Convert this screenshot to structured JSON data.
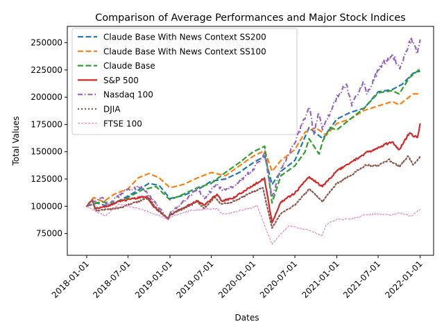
{
  "chart_data": {
    "type": "line",
    "title": "Comparison of Average Performances and Major Stock Indices",
    "xlabel": "Dates",
    "ylabel": "Total Values",
    "xlim": [
      "2017-10-08",
      "2022-03-01"
    ],
    "ylim": [
      55000,
      265000
    ],
    "x_ticks": [
      "2018-01-01",
      "2018-07-01",
      "2019-01-01",
      "2019-07-01",
      "2020-01-01",
      "2020-07-01",
      "2021-01-01",
      "2021-07-01",
      "2022-01-01"
    ],
    "y_ticks": [
      75000,
      100000,
      125000,
      150000,
      175000,
      200000,
      225000,
      250000
    ],
    "y_tick_labels": [
      "75000",
      "100000",
      "125000",
      "150000",
      "175000",
      "200000",
      "225000",
      "250000"
    ],
    "grid": false,
    "legend_position": "top-left",
    "series": [
      {
        "name": "Claude Base With News Context SS200",
        "color": "#1f77b4",
        "style": "dashed",
        "points": [
          [
            "2018-01-01",
            100000
          ],
          [
            "2018-02-15",
            103000
          ],
          [
            "2018-04-01",
            100000
          ],
          [
            "2018-06-01",
            106000
          ],
          [
            "2018-08-01",
            113000
          ],
          [
            "2018-10-01",
            121000
          ],
          [
            "2018-11-15",
            119000
          ],
          [
            "2019-01-01",
            107000
          ],
          [
            "2019-03-01",
            110000
          ],
          [
            "2019-05-01",
            115000
          ],
          [
            "2019-07-01",
            123000
          ],
          [
            "2019-09-01",
            125000
          ],
          [
            "2019-11-01",
            131000
          ],
          [
            "2020-01-01",
            140000
          ],
          [
            "2020-02-20",
            146000
          ],
          [
            "2020-03-23",
            120000
          ],
          [
            "2020-05-01",
            132000
          ],
          [
            "2020-07-01",
            142000
          ],
          [
            "2020-09-01",
            172000
          ],
          [
            "2020-11-01",
            162000
          ],
          [
            "2021-01-01",
            180000
          ],
          [
            "2021-03-01",
            186000
          ],
          [
            "2021-05-01",
            190000
          ],
          [
            "2021-07-01",
            205000
          ],
          [
            "2021-09-01",
            207000
          ],
          [
            "2021-10-15",
            212000
          ],
          [
            "2021-12-01",
            222000
          ],
          [
            "2022-01-01",
            224000
          ]
        ]
      },
      {
        "name": "Claude Base With News Context SS100",
        "color": "#ff7f0e",
        "style": "dashed",
        "points": [
          [
            "2018-01-01",
            100000
          ],
          [
            "2018-02-01",
            108000
          ],
          [
            "2018-03-15",
            104000
          ],
          [
            "2018-05-01",
            111000
          ],
          [
            "2018-07-01",
            116000
          ],
          [
            "2018-08-15",
            126000
          ],
          [
            "2018-10-01",
            130000
          ],
          [
            "2018-11-15",
            126000
          ],
          [
            "2019-01-01",
            117000
          ],
          [
            "2019-03-01",
            120000
          ],
          [
            "2019-05-01",
            126000
          ],
          [
            "2019-07-01",
            131000
          ],
          [
            "2019-09-01",
            128000
          ],
          [
            "2019-11-01",
            137000
          ],
          [
            "2020-01-01",
            146000
          ],
          [
            "2020-02-20",
            151000
          ],
          [
            "2020-03-23",
            132000
          ],
          [
            "2020-05-01",
            142000
          ],
          [
            "2020-07-01",
            152000
          ],
          [
            "2020-08-15",
            168000
          ],
          [
            "2020-10-01",
            172000
          ],
          [
            "2020-11-15",
            165000
          ],
          [
            "2021-01-01",
            176000
          ],
          [
            "2021-03-01",
            180000
          ],
          [
            "2021-05-01",
            188000
          ],
          [
            "2021-07-01",
            192000
          ],
          [
            "2021-09-01",
            196000
          ],
          [
            "2021-10-01",
            193000
          ],
          [
            "2021-12-01",
            203000
          ],
          [
            "2022-01-01",
            203000
          ]
        ]
      },
      {
        "name": "Claude Base",
        "color": "#2ca02c",
        "style": "dashed",
        "points": [
          [
            "2018-01-01",
            100000
          ],
          [
            "2018-03-01",
            104000
          ],
          [
            "2018-05-01",
            103000
          ],
          [
            "2018-07-01",
            108000
          ],
          [
            "2018-09-01",
            115000
          ],
          [
            "2018-11-01",
            118000
          ],
          [
            "2019-01-01",
            106000
          ],
          [
            "2019-03-01",
            111000
          ],
          [
            "2019-05-01",
            117000
          ],
          [
            "2019-07-01",
            121000
          ],
          [
            "2019-09-01",
            131000
          ],
          [
            "2019-11-01",
            140000
          ],
          [
            "2020-01-01",
            150000
          ],
          [
            "2020-02-20",
            155000
          ],
          [
            "2020-03-23",
            103000
          ],
          [
            "2020-05-01",
            128000
          ],
          [
            "2020-07-01",
            137000
          ],
          [
            "2020-08-15",
            150000
          ],
          [
            "2020-09-01",
            162000
          ],
          [
            "2020-10-15",
            148000
          ],
          [
            "2020-11-01",
            160000
          ],
          [
            "2020-12-01",
            172000
          ],
          [
            "2021-01-01",
            170000
          ],
          [
            "2021-03-01",
            180000
          ],
          [
            "2021-05-01",
            190000
          ],
          [
            "2021-07-01",
            204000
          ],
          [
            "2021-09-01",
            206000
          ],
          [
            "2021-10-01",
            203000
          ],
          [
            "2021-11-15",
            218000
          ],
          [
            "2022-01-01",
            226000
          ]
        ]
      },
      {
        "name": "S&P 500",
        "color": "#d62728",
        "style": "solid",
        "points": [
          [
            "2018-01-01",
            100000
          ],
          [
            "2018-01-26",
            106000
          ],
          [
            "2018-02-08",
            98000
          ],
          [
            "2018-04-01",
            100000
          ],
          [
            "2018-06-01",
            105000
          ],
          [
            "2018-09-20",
            109000
          ],
          [
            "2018-10-25",
            99000
          ],
          [
            "2018-12-24",
            88000
          ],
          [
            "2019-01-01",
            92000
          ],
          [
            "2019-04-30",
            105000
          ],
          [
            "2019-06-01",
            101000
          ],
          [
            "2019-07-26",
            111000
          ],
          [
            "2019-08-15",
            105000
          ],
          [
            "2019-10-01",
            107000
          ],
          [
            "2019-12-31",
            119000
          ],
          [
            "2020-02-19",
            126000
          ],
          [
            "2020-03-23",
            85000
          ],
          [
            "2020-05-01",
            104000
          ],
          [
            "2020-07-01",
            112000
          ],
          [
            "2020-09-02",
            127000
          ],
          [
            "2020-10-30",
            118000
          ],
          [
            "2020-12-31",
            132000
          ],
          [
            "2021-03-01",
            140000
          ],
          [
            "2021-05-01",
            148000
          ],
          [
            "2021-07-01",
            154000
          ],
          [
            "2021-09-01",
            159000
          ],
          [
            "2021-10-01",
            152000
          ],
          [
            "2021-11-15",
            167000
          ],
          [
            "2021-12-20",
            163000
          ],
          [
            "2022-01-01",
            176000
          ]
        ]
      },
      {
        "name": "Nasdaq 100",
        "color": "#9467bd",
        "style": "dashdot",
        "points": [
          [
            "2018-01-01",
            100000
          ],
          [
            "2018-03-10",
            108000
          ],
          [
            "2018-04-01",
            101000
          ],
          [
            "2018-06-20",
            114000
          ],
          [
            "2018-08-29",
            118000
          ],
          [
            "2018-10-25",
            104000
          ],
          [
            "2018-12-24",
            88000
          ],
          [
            "2019-01-01",
            93000
          ],
          [
            "2019-05-01",
            116000
          ],
          [
            "2019-06-01",
            107000
          ],
          [
            "2019-07-26",
            121000
          ],
          [
            "2019-08-15",
            115000
          ],
          [
            "2019-10-01",
            117000
          ],
          [
            "2019-12-31",
            134000
          ],
          [
            "2020-02-19",
            149000
          ],
          [
            "2020-03-23",
            108000
          ],
          [
            "2020-05-01",
            134000
          ],
          [
            "2020-07-01",
            158000
          ],
          [
            "2020-09-02",
            191000
          ],
          [
            "2020-09-23",
            166000
          ],
          [
            "2020-10-12",
            186000
          ],
          [
            "2020-10-30",
            170000
          ],
          [
            "2020-12-31",
            200000
          ],
          [
            "2021-02-12",
            212000
          ],
          [
            "2021-03-08",
            192000
          ],
          [
            "2021-04-26",
            214000
          ],
          [
            "2021-05-12",
            203000
          ],
          [
            "2021-07-01",
            225000
          ],
          [
            "2021-09-01",
            240000
          ],
          [
            "2021-10-04",
            226000
          ],
          [
            "2021-11-22",
            255000
          ],
          [
            "2021-12-20",
            240000
          ],
          [
            "2022-01-01",
            253000
          ]
        ]
      },
      {
        "name": "DJIA",
        "color": "#8c564b",
        "style": "dotted",
        "points": [
          [
            "2018-01-01",
            100000
          ],
          [
            "2018-01-26",
            106000
          ],
          [
            "2018-02-08",
            96000
          ],
          [
            "2018-04-01",
            97000
          ],
          [
            "2018-06-01",
            99000
          ],
          [
            "2018-10-03",
            108000
          ],
          [
            "2018-10-25",
            100000
          ],
          [
            "2018-12-24",
            88000
          ],
          [
            "2019-01-01",
            92000
          ],
          [
            "2019-04-30",
            104000
          ],
          [
            "2019-06-01",
            98000
          ],
          [
            "2019-07-15",
            108000
          ],
          [
            "2019-08-15",
            102000
          ],
          [
            "2019-10-01",
            104000
          ],
          [
            "2019-12-31",
            113000
          ],
          [
            "2020-02-12",
            117000
          ],
          [
            "2020-03-23",
            80000
          ],
          [
            "2020-05-01",
            93000
          ],
          [
            "2020-07-01",
            101000
          ],
          [
            "2020-09-02",
            116000
          ],
          [
            "2020-10-30",
            104000
          ],
          [
            "2020-12-31",
            121000
          ],
          [
            "2021-03-01",
            128000
          ],
          [
            "2021-05-07",
            138000
          ],
          [
            "2021-07-01",
            137000
          ],
          [
            "2021-08-16",
            143000
          ],
          [
            "2021-10-01",
            136000
          ],
          [
            "2021-11-08",
            146000
          ],
          [
            "2021-12-01",
            138000
          ],
          [
            "2022-01-01",
            146000
          ]
        ]
      },
      {
        "name": "FTSE 100",
        "color": "#e377c2",
        "style": "solid-thin",
        "points": [
          [
            "2018-01-01",
            100000
          ],
          [
            "2018-03-23",
            91000
          ],
          [
            "2018-05-22",
            102000
          ],
          [
            "2018-07-01",
            100000
          ],
          [
            "2018-09-01",
            97000
          ],
          [
            "2018-12-27",
            88000
          ],
          [
            "2019-01-01",
            90000
          ],
          [
            "2019-04-01",
            96000
          ],
          [
            "2019-07-26",
            98000
          ],
          [
            "2019-08-15",
            93000
          ],
          [
            "2019-10-01",
            94000
          ],
          [
            "2019-12-31",
            99000
          ],
          [
            "2020-01-17",
            101000
          ],
          [
            "2020-03-23",
            65000
          ],
          [
            "2020-05-01",
            75000
          ],
          [
            "2020-06-08",
            82000
          ],
          [
            "2020-07-01",
            81000
          ],
          [
            "2020-09-01",
            78000
          ],
          [
            "2020-10-28",
            73000
          ],
          [
            "2020-11-15",
            83000
          ],
          [
            "2020-12-31",
            88000
          ],
          [
            "2021-03-01",
            88000
          ],
          [
            "2021-05-01",
            92000
          ],
          [
            "2021-07-01",
            93000
          ],
          [
            "2021-09-01",
            92000
          ],
          [
            "2021-10-01",
            94000
          ],
          [
            "2021-11-26",
            91000
          ],
          [
            "2021-12-31",
            97000
          ],
          [
            "2022-01-01",
            97000
          ]
        ]
      }
    ]
  }
}
